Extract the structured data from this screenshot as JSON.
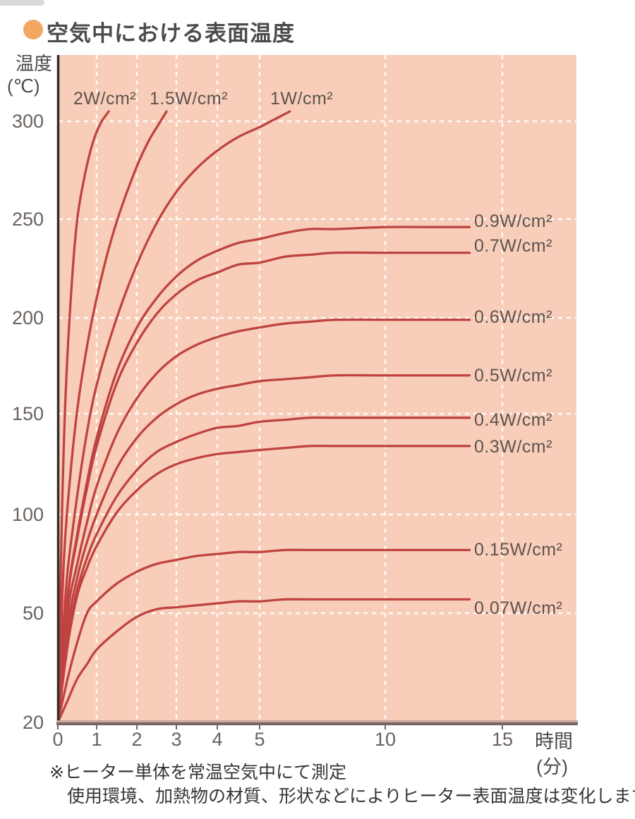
{
  "title": "空気中における表面温度",
  "header": {
    "bullet_color": "#f2a860"
  },
  "footnotes": [
    "※ヒーター単体を常温空気中にて測定",
    "使用環境、加熱物の材質、形状などによりヒーター表面温度は変化します。"
  ],
  "chart_data": {
    "type": "line",
    "title": "空気中における表面温度",
    "x_axis": {
      "title": "時間",
      "unit": "(分)",
      "ticks": [
        0,
        1,
        2,
        3,
        4,
        5,
        10,
        15
      ],
      "scale_note": "axis compressed after 5 min"
    },
    "y_axis": {
      "title": "温度",
      "unit": "(℃)",
      "ticks": [
        20,
        50,
        100,
        150,
        200,
        250,
        300
      ],
      "min": 20,
      "max": 310
    },
    "grid": "white dashed",
    "plot_bg_color": "#f8ceba",
    "line_color": "#bf4340",
    "tick_color": "#6a625e",
    "series": [
      {
        "label": "2W/cm²",
        "label_position": "top",
        "points": [
          [
            0,
            20
          ],
          [
            0.1,
            95
          ],
          [
            0.2,
            160
          ],
          [
            0.35,
            215
          ],
          [
            0.5,
            250
          ],
          [
            0.7,
            273
          ],
          [
            0.9,
            289
          ],
          [
            1.1,
            299
          ],
          [
            1.3,
            305
          ]
        ]
      },
      {
        "label": "1.5W/cm²",
        "label_position": "top",
        "points": [
          [
            0,
            20
          ],
          [
            0.15,
            75
          ],
          [
            0.3,
            115
          ],
          [
            0.5,
            152
          ],
          [
            0.75,
            185
          ],
          [
            1,
            210
          ],
          [
            1.3,
            235
          ],
          [
            1.6,
            255
          ],
          [
            2,
            277
          ],
          [
            2.3,
            290
          ],
          [
            2.6,
            300
          ],
          [
            2.75,
            305
          ]
        ]
      },
      {
        "label": "1W/cm²",
        "label_position": "top",
        "points": [
          [
            0,
            20
          ],
          [
            0.2,
            60
          ],
          [
            0.4,
            95
          ],
          [
            0.7,
            135
          ],
          [
            1,
            165
          ],
          [
            1.5,
            200
          ],
          [
            2,
            227
          ],
          [
            2.5,
            248
          ],
          [
            3,
            264
          ],
          [
            3.5,
            276
          ],
          [
            4,
            285
          ],
          [
            4.5,
            292
          ],
          [
            5,
            297
          ],
          [
            5.6,
            301
          ],
          [
            6.2,
            305
          ]
        ]
      },
      {
        "label": "0.9W/cm²",
        "label_position": "right",
        "plateau_c": 246,
        "points": [
          [
            0,
            20
          ],
          [
            0.25,
            58
          ],
          [
            0.5,
            90
          ],
          [
            0.75,
            116
          ],
          [
            1,
            138
          ],
          [
            1.5,
            172
          ],
          [
            2,
            195
          ],
          [
            2.5,
            210
          ],
          [
            3,
            221
          ],
          [
            3.5,
            229
          ],
          [
            4,
            234
          ],
          [
            4.5,
            238
          ],
          [
            5,
            240
          ],
          [
            6,
            243
          ],
          [
            7,
            245
          ],
          [
            8,
            245
          ],
          [
            10,
            246
          ],
          [
            12,
            246
          ],
          [
            13.6,
            246
          ]
        ]
      },
      {
        "label": "0.7W/cm²",
        "label_position": "right",
        "plateau_c": 233,
        "points": [
          [
            0,
            20
          ],
          [
            0.25,
            57
          ],
          [
            0.5,
            88
          ],
          [
            0.75,
            113
          ],
          [
            1,
            134
          ],
          [
            1.5,
            166
          ],
          [
            2,
            187
          ],
          [
            2.5,
            202
          ],
          [
            3,
            212
          ],
          [
            3.5,
            219
          ],
          [
            4,
            223
          ],
          [
            4.5,
            227
          ],
          [
            5,
            228
          ],
          [
            6,
            231
          ],
          [
            7,
            232
          ],
          [
            8,
            233
          ],
          [
            10,
            233
          ],
          [
            12,
            233
          ],
          [
            13.6,
            233
          ]
        ]
      },
      {
        "label": "0.6W/cm²",
        "label_position": "right",
        "plateau_c": 199,
        "points": [
          [
            0,
            20
          ],
          [
            0.25,
            50
          ],
          [
            0.5,
            75
          ],
          [
            0.75,
            96
          ],
          [
            1,
            114
          ],
          [
            1.5,
            140
          ],
          [
            2,
            158
          ],
          [
            2.5,
            171
          ],
          [
            3,
            180
          ],
          [
            3.5,
            186
          ],
          [
            4,
            190
          ],
          [
            4.5,
            193
          ],
          [
            5,
            195
          ],
          [
            6,
            197
          ],
          [
            7,
            198
          ],
          [
            8,
            199
          ],
          [
            10,
            199
          ],
          [
            12,
            199
          ],
          [
            13.6,
            199
          ]
        ]
      },
      {
        "label": "0.5W/cm²",
        "label_position": "right",
        "plateau_c": 170,
        "points": [
          [
            0,
            20
          ],
          [
            0.25,
            46
          ],
          [
            0.5,
            68
          ],
          [
            0.75,
            86
          ],
          [
            1,
            100
          ],
          [
            1.5,
            123
          ],
          [
            2,
            138
          ],
          [
            2.5,
            148
          ],
          [
            3,
            155
          ],
          [
            3.5,
            160
          ],
          [
            4,
            163
          ],
          [
            4.5,
            165
          ],
          [
            5,
            167
          ],
          [
            6,
            168
          ],
          [
            7,
            169
          ],
          [
            8,
            170
          ],
          [
            10,
            170
          ],
          [
            12,
            170
          ],
          [
            13.6,
            170
          ]
        ]
      },
      {
        "label": "0.4W/cm²",
        "label_position": "right",
        "plateau_c": 148,
        "points": [
          [
            0,
            20
          ],
          [
            0.25,
            43
          ],
          [
            0.5,
            62
          ],
          [
            0.75,
            78
          ],
          [
            1,
            90
          ],
          [
            1.5,
            109
          ],
          [
            2,
            122
          ],
          [
            2.5,
            131
          ],
          [
            3,
            136
          ],
          [
            3.5,
            140
          ],
          [
            4,
            143
          ],
          [
            4.5,
            144
          ],
          [
            5,
            146
          ],
          [
            6,
            147
          ],
          [
            7,
            148
          ],
          [
            8,
            148
          ],
          [
            10,
            148
          ],
          [
            12,
            148
          ],
          [
            13.6,
            148
          ]
        ]
      },
      {
        "label": "0.3W/cm²",
        "label_position": "right",
        "plateau_c": 134,
        "points": [
          [
            0,
            20
          ],
          [
            0.25,
            41
          ],
          [
            0.5,
            59
          ],
          [
            0.75,
            73
          ],
          [
            1,
            84
          ],
          [
            1.5,
            101
          ],
          [
            2,
            112
          ],
          [
            2.5,
            120
          ],
          [
            3,
            125
          ],
          [
            3.5,
            128
          ],
          [
            4,
            130
          ],
          [
            4.5,
            131
          ],
          [
            5,
            132
          ],
          [
            6,
            133
          ],
          [
            7,
            134
          ],
          [
            8,
            134
          ],
          [
            10,
            134
          ],
          [
            12,
            134
          ],
          [
            13.6,
            134
          ]
        ]
      },
      {
        "label": "0.15W/cm²",
        "label_position": "right",
        "plateau_c": 82,
        "points": [
          [
            0,
            20
          ],
          [
            0.25,
            32
          ],
          [
            0.5,
            42
          ],
          [
            0.75,
            50
          ],
          [
            1,
            56
          ],
          [
            1.5,
            65
          ],
          [
            2,
            71
          ],
          [
            2.5,
            75
          ],
          [
            3,
            77
          ],
          [
            3.5,
            79
          ],
          [
            4,
            80
          ],
          [
            4.5,
            81
          ],
          [
            5,
            81
          ],
          [
            6,
            82
          ],
          [
            7,
            82
          ],
          [
            8,
            82
          ],
          [
            10,
            82
          ],
          [
            12,
            82
          ],
          [
            13.6,
            82
          ]
        ]
      },
      {
        "label": "0.07W/cm²",
        "label_position": "right",
        "plateau_c": 57,
        "points": [
          [
            0,
            20
          ],
          [
            0.25,
            26
          ],
          [
            0.5,
            32
          ],
          [
            0.75,
            36
          ],
          [
            1,
            40
          ],
          [
            1.5,
            45
          ],
          [
            2,
            49
          ],
          [
            2.5,
            52
          ],
          [
            3,
            53
          ],
          [
            3.5,
            54
          ],
          [
            4,
            55
          ],
          [
            4.5,
            56
          ],
          [
            5,
            56
          ],
          [
            6,
            57
          ],
          [
            7,
            57
          ],
          [
            8,
            57
          ],
          [
            10,
            57
          ],
          [
            12,
            57
          ],
          [
            13.6,
            57
          ]
        ]
      }
    ]
  }
}
